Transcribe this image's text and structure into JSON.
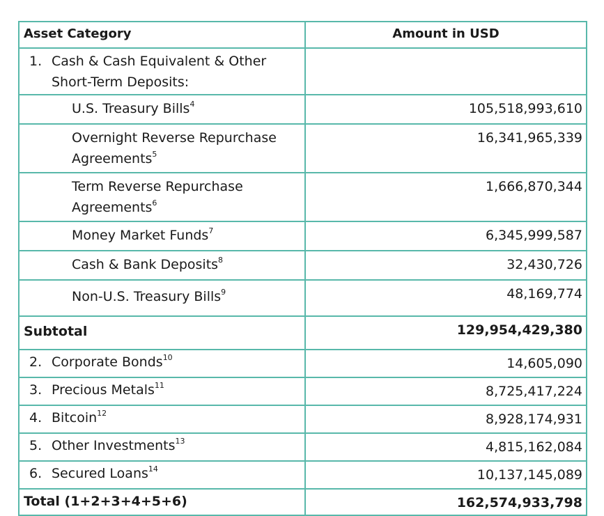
{
  "header": {
    "category": "Asset Category",
    "amount": "Amount in USD"
  },
  "section1": {
    "number": "1.",
    "label_line1": "Cash & Cash Equivalent & Other",
    "label_line2": "Short-Term Deposits:"
  },
  "subitems": [
    {
      "label_line1": "U.S. Treasury Bills",
      "label_line2": "",
      "sup": "4",
      "amount": "105,518,993,610"
    },
    {
      "label_line1": "Overnight Reverse Repurchase",
      "label_line2": "Agreements",
      "sup": "5",
      "amount": "16,341,965,339"
    },
    {
      "label_line1": "Term Reverse Repurchase",
      "label_line2": "Agreements",
      "sup": "6",
      "amount": "1,666,870,344"
    },
    {
      "label_line1": "Money Market Funds",
      "label_line2": "",
      "sup": "7",
      "amount": "6,345,999,587"
    },
    {
      "label_line1": "Cash & Bank Deposits",
      "label_line2": "",
      "sup": "8",
      "amount": "32,430,726"
    },
    {
      "label_line1": "Non-U.S. Treasury Bills",
      "label_line2": "",
      "sup": "9",
      "amount": "48,169,774"
    }
  ],
  "subtotal": {
    "label": "Subtotal",
    "amount": "129,954,429,380"
  },
  "items": [
    {
      "number": "2.",
      "label": "Corporate Bonds",
      "sup": "10",
      "amount": "14,605,090"
    },
    {
      "number": "3.",
      "label": "Precious Metals",
      "sup": "11",
      "amount": "8,725,417,224"
    },
    {
      "number": "4.",
      "label": "Bitcoin",
      "sup": "12",
      "amount": "8,928,174,931"
    },
    {
      "number": "5.",
      "label": "Other Investments",
      "sup": "13",
      "amount": "4,815,162,084"
    },
    {
      "number": "6.",
      "label": "Secured Loans",
      "sup": "14",
      "amount": "10,137,145,089"
    }
  ],
  "total": {
    "label": "Total (1+2+3+4+5+6)",
    "amount": "162,574,933,798"
  },
  "colors": {
    "border": "#58b8aa",
    "text": "#1a1a1a"
  }
}
